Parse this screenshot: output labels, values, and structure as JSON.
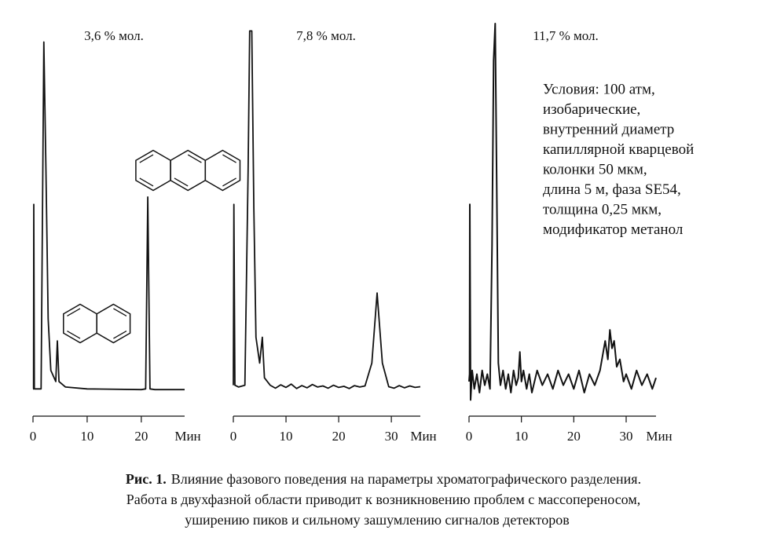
{
  "chart_data": [
    {
      "type": "line",
      "title": "3,6 % мол.",
      "x_label": "Мин",
      "color": "#111111",
      "xlim": [
        0,
        28
      ],
      "xticks": [
        0,
        10,
        20
      ],
      "x": [
        0,
        0.1,
        0.15,
        0.25,
        1.5,
        2.0,
        2.4,
        2.8,
        3.3,
        4.2,
        4.5,
        4.8,
        6,
        10,
        20,
        20.8,
        21.2,
        21.6,
        22.5,
        28
      ],
      "values": [
        1,
        1,
        51,
        1,
        1,
        95,
        60,
        20,
        6,
        3,
        14,
        3,
        1.5,
        1,
        0.8,
        1,
        53,
        1,
        0.8,
        0.8
      ]
    },
    {
      "type": "line",
      "title": "7,8 % мол.",
      "x_label": "Мин",
      "color": "#111111",
      "xlim": [
        0,
        35.5
      ],
      "xticks": [
        0,
        10,
        20,
        30
      ],
      "x": [
        0,
        0.1,
        0.3,
        1,
        2.2,
        2.8,
        3.1,
        3.5,
        3.9,
        4.3,
        5.0,
        5.5,
        5.9,
        7,
        8,
        9,
        10,
        11,
        12,
        13,
        14,
        15,
        16,
        17,
        18,
        19,
        20,
        21,
        22,
        23,
        24,
        25,
        26.3,
        27.3,
        28.3,
        29.5,
        30.5,
        31.5,
        32.5,
        33.5,
        34.5,
        35.5
      ],
      "values": [
        2,
        51,
        2,
        1.5,
        2,
        60,
        98,
        98,
        50,
        15,
        8,
        15,
        4,
        2,
        1.2,
        2.1,
        1.4,
        2.3,
        1.1,
        1.9,
        1.3,
        2.2,
        1.5,
        1.8,
        1.2,
        2.0,
        1.4,
        1.7,
        1.1,
        1.9,
        1.5,
        1.8,
        8,
        27,
        8,
        1.6,
        1.2,
        1.9,
        1.3,
        1.8,
        1.4,
        1.6
      ]
    },
    {
      "type": "line",
      "title": "11,7 % мол.",
      "x_label": "Мин",
      "color": "#111111",
      "xlim": [
        0,
        35.7
      ],
      "xticks": [
        0,
        10,
        20,
        30
      ],
      "x": [
        0,
        0.1,
        0.15,
        0.3,
        0.6,
        1,
        1.5,
        2,
        2.5,
        3,
        3.5,
        4,
        4.4,
        4.7,
        5.0,
        5.3,
        5.6,
        6,
        6.5,
        7,
        7.5,
        8,
        8.5,
        9,
        9.4,
        9.7,
        10,
        10.4,
        11,
        11.5,
        12,
        13,
        14,
        15,
        16,
        17,
        18,
        19,
        20,
        21,
        22,
        23,
        24,
        25,
        25.5,
        26,
        26.5,
        26.9,
        27.3,
        27.7,
        28.2,
        28.8,
        29.5,
        30,
        31,
        32,
        33,
        34,
        35,
        35.7
      ],
      "values": [
        3,
        5,
        51,
        -2,
        6,
        1,
        5,
        0,
        6,
        2,
        5,
        1,
        40,
        90,
        100,
        55,
        8,
        2,
        6,
        1,
        5,
        0,
        6,
        2,
        4,
        11,
        3,
        6,
        1,
        5,
        0,
        6,
        2,
        5,
        1,
        6,
        2,
        5,
        1,
        6,
        0,
        5,
        2,
        6,
        10,
        14,
        9,
        17,
        12,
        14,
        7,
        9,
        3,
        5,
        1,
        6,
        2,
        5,
        1,
        4
      ],
      "annotation": [
        "Условия: 100 атм,",
        "изобарические,",
        "внутренний диаметр",
        "капиллярной кварцевой",
        "колонки   50 мкм,",
        "длина   5 м, фаза   SE54,",
        "толщина   0,25 мкм,",
        "модификатор   метанол"
      ]
    }
  ],
  "caption": {
    "label": "Рис. 1.",
    "lines": [
      "Влияние фазового поведения на параметры хроматографического разделения.",
      "Работа в двухфазной области приводит к возникновению проблем с массопереносом,",
      "уширению пиков и сильному зашумлению сигналов детекторов"
    ]
  }
}
